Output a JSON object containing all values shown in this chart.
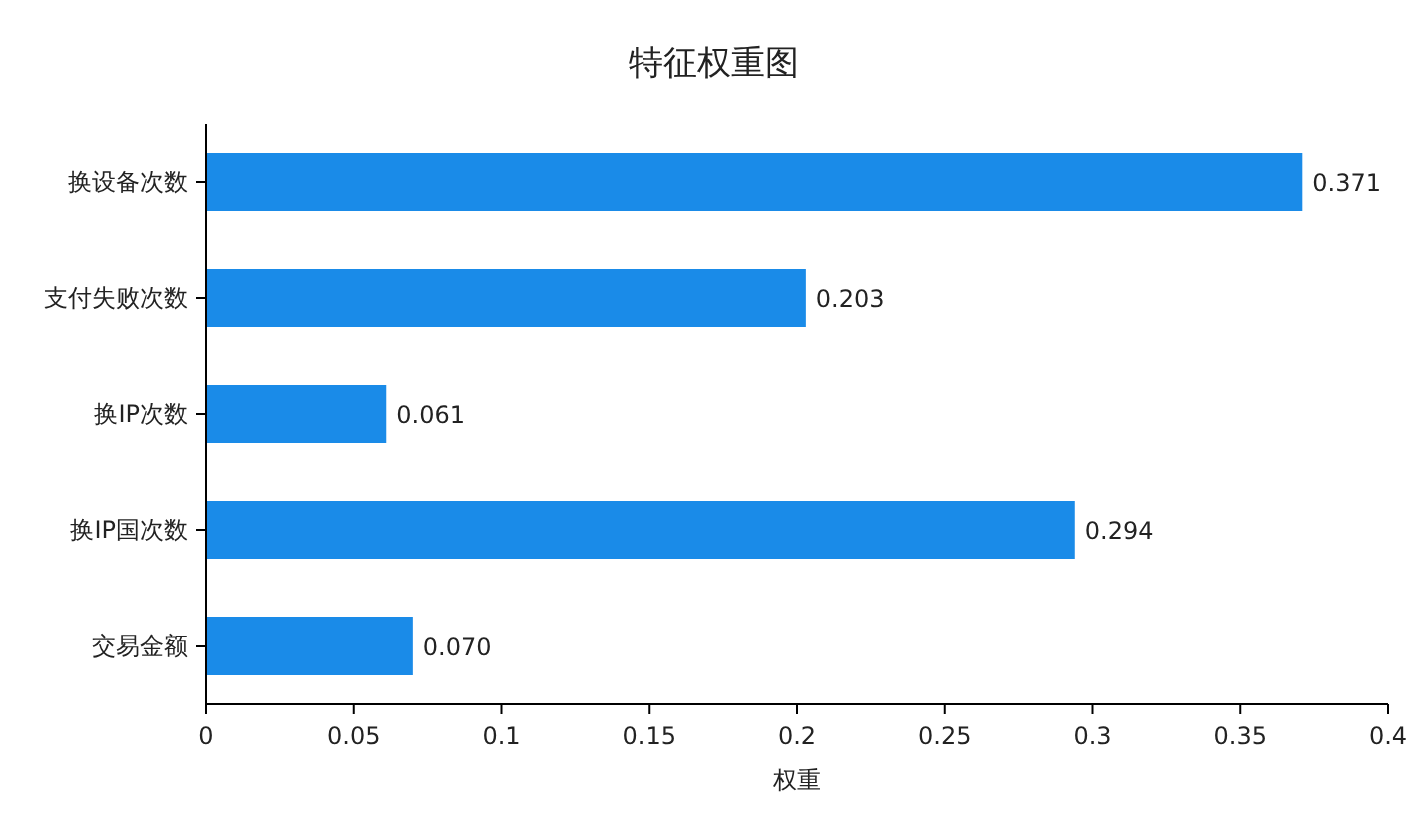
{
  "chart_data": {
    "type": "bar",
    "orientation": "horizontal",
    "title": "特征权重图",
    "xlabel": "权重",
    "categories": [
      "换设备次数",
      "支付失败次数",
      "换IP次数",
      "换IP国次数",
      "交易金额"
    ],
    "values": [
      0.371,
      0.203,
      0.061,
      0.294,
      0.07
    ],
    "value_labels": [
      "0.371",
      "0.203",
      "0.061",
      "0.294",
      "0.070"
    ],
    "color": "#1a8be8",
    "xlim": [
      0,
      0.4
    ],
    "xticks": [
      0,
      0.05,
      0.1,
      0.15,
      0.2,
      0.25,
      0.3,
      0.35,
      0.4
    ]
  }
}
